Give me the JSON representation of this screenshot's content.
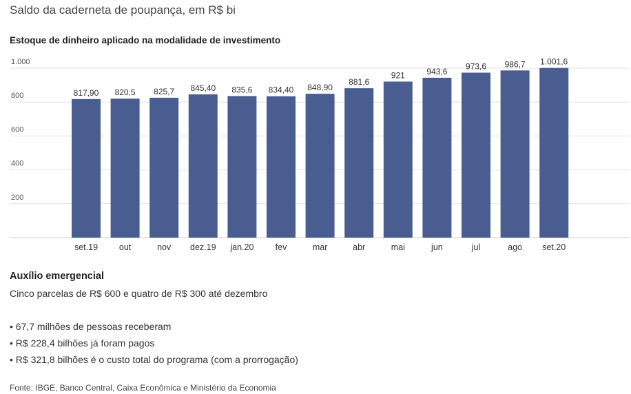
{
  "header": {
    "title": "Saldo da caderneta de poupança, em R$ bi",
    "subtitle": "Estoque de dinheiro aplicado na modalidade de investimento"
  },
  "chart_data": {
    "type": "bar",
    "title": "Saldo da caderneta de poupança, em R$ bi",
    "subtitle": "Estoque de dinheiro aplicado na modalidade de investimento",
    "categories": [
      "set.19",
      "out",
      "nov",
      "dez.19",
      "jan.20",
      "fev",
      "mar",
      "abr",
      "mai",
      "jun",
      "jul",
      "ago",
      "set.20"
    ],
    "values": [
      817.9,
      820.5,
      825.7,
      845.4,
      835.6,
      834.4,
      848.9,
      881.6,
      921,
      943.6,
      973.6,
      986.7,
      1001.6
    ],
    "value_labels": [
      "817,90",
      "820,5",
      "825,7",
      "845,40",
      "835,6",
      "834,40",
      "848,90",
      "881,6",
      "921",
      "943,6",
      "973,6",
      "986,7",
      "1.001,6"
    ],
    "yticks": [
      200,
      400,
      600,
      800,
      1000
    ],
    "ytick_labels": [
      "200",
      "400",
      "600",
      "800",
      "1.000"
    ],
    "ylim": [
      0,
      1000
    ],
    "grid": true,
    "bar_color": "#4a5d91",
    "xlabel": "",
    "ylabel": ""
  },
  "section": {
    "title": "Auxílio emergencial",
    "subtitle": "Cinco parcelas de R$ 600 e quatro de R$ 300 até dezembro",
    "bullets": [
      "• 67,7 milhões de pessoas receberam",
      "• R$ 228,4 bilhões já foram pagos",
      "• R$ 321,8 bilhões é o custo total do programa (com a prorrogação)"
    ]
  },
  "source": "Fonte: IBGE, Banco Central, Caixa Econômica e Ministério da Economia"
}
